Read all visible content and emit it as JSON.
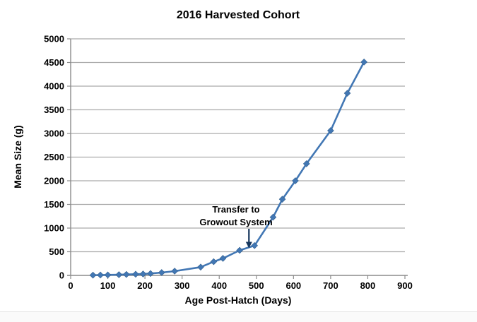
{
  "colors": {
    "series": "#4277B4",
    "marker_fill": "#4277B4",
    "marker_edge": "#35618F",
    "gridline": "#ABABAB",
    "axis": "#8C8C8C",
    "arrow": "#17375E",
    "text": "#000000",
    "background": "#FFFFFF"
  },
  "chart_data": {
    "type": "line",
    "title": "2016 Harvested Cohort",
    "xlabel": "Age Post-Hatch (Days)",
    "ylabel": "Mean Size (g)",
    "xlim": [
      0,
      900
    ],
    "ylim": [
      0,
      5000
    ],
    "x_ticks": [
      0,
      100,
      200,
      300,
      400,
      500,
      600,
      700,
      800,
      900
    ],
    "y_ticks": [
      0,
      500,
      1000,
      1500,
      2000,
      2500,
      3000,
      3500,
      4000,
      4500,
      5000
    ],
    "grid": "horizontal",
    "legend": "none",
    "marker": "diamond",
    "series": [
      {
        "name": "2016 Harvested Cohort",
        "x": [
          60,
          80,
          100,
          130,
          150,
          175,
          195,
          215,
          245,
          280,
          350,
          385,
          410,
          455,
          495,
          545,
          570,
          605,
          635,
          700,
          745,
          790
        ],
        "y": [
          5,
          8,
          10,
          15,
          20,
          25,
          30,
          40,
          60,
          90,
          175,
          290,
          360,
          530,
          630,
          1230,
          1610,
          2000,
          2360,
          3060,
          3850,
          4510
        ]
      }
    ],
    "annotation": {
      "line1": "Transfer to",
      "line2": "Growout System",
      "arrow_x": 480,
      "arrow_y": 575
    }
  }
}
